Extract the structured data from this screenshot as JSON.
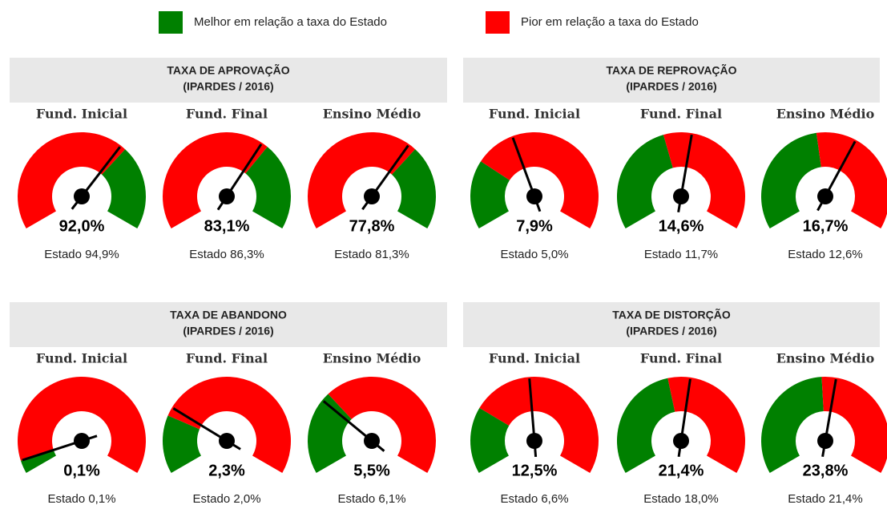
{
  "legend": [
    {
      "label": "Melhor em relação a taxa do Estado",
      "color": "#008000"
    },
    {
      "label": "Pior em relação a taxa do Estado",
      "color": "#ff0000"
    }
  ],
  "chart_data": [
    {
      "type": "gauge",
      "title": "TAXA DE APROVAÇÃO",
      "subtitle": "(IPARDES / 2016)",
      "better": "higher",
      "categories": [
        "Fund. Inicial",
        "Fund. Final",
        "Ensino Médio"
      ],
      "values": [
        92.0,
        83.1,
        77.8
      ],
      "value_labels": [
        "92,0%",
        "83,1%",
        "77,8%"
      ],
      "state_values": [
        94.9,
        86.3,
        81.3
      ],
      "state_labels": [
        "Estado 94,9%",
        "Estado 86,3%",
        "Estado 81,3%"
      ],
      "ylims": [
        [
          0,
          140
        ],
        [
          0,
          130
        ],
        [
          0,
          120
        ]
      ]
    },
    {
      "type": "gauge",
      "title": "TAXA DE REPROVAÇÃO",
      "subtitle": "(IPARDES / 2016)",
      "better": "lower",
      "categories": [
        "Fund. Inicial",
        "Fund. Final",
        "Ensino Médio"
      ],
      "values": [
        7.9,
        14.6,
        16.7
      ],
      "value_labels": [
        "7,9%",
        "14,6%",
        "16,7%"
      ],
      "state_values": [
        5.0,
        11.7,
        12.6
      ],
      "state_labels": [
        "Estado 5,0%",
        "Estado 11,7%",
        "Estado 12,6%"
      ],
      "ylims": [
        [
          0,
          19
        ],
        [
          0,
          27
        ],
        [
          0,
          27
        ]
      ]
    },
    {
      "type": "gauge",
      "title": "TAXA DE ABANDONO",
      "subtitle": "(IPARDES / 2016)",
      "better": "lower",
      "categories": [
        "Fund. Inicial",
        "Fund. Final",
        "Ensino Médio"
      ],
      "values": [
        0.1,
        2.3,
        5.5
      ],
      "value_labels": [
        "0,1%",
        "2,3%",
        "5,5%"
      ],
      "state_values": [
        0.1,
        2.0,
        6.1
      ],
      "state_labels": [
        "Estado 0,1%",
        "Estado 2,0%",
        "Estado 6,1%"
      ],
      "ylims": [
        [
          0,
          2
        ],
        [
          0,
          9
        ],
        [
          0,
          19
        ]
      ]
    },
    {
      "type": "gauge",
      "title": "TAXA DE DISTORÇÃO",
      "subtitle": "(IPARDES / 2016)",
      "better": "lower",
      "categories": [
        "Fund. Inicial",
        "Fund. Final",
        "Ensino Médio"
      ],
      "values": [
        12.5,
        21.4,
        23.8
      ],
      "value_labels": [
        "12,5%",
        "21,4%",
        "23,8%"
      ],
      "state_values": [
        6.6,
        18.0,
        21.4
      ],
      "state_labels": [
        "Estado 6,6%",
        "Estado 18,0%",
        "Estado 21,4%"
      ],
      "ylims": [
        [
          0,
          26
        ],
        [
          0,
          40
        ],
        [
          0,
          44
        ]
      ]
    }
  ]
}
